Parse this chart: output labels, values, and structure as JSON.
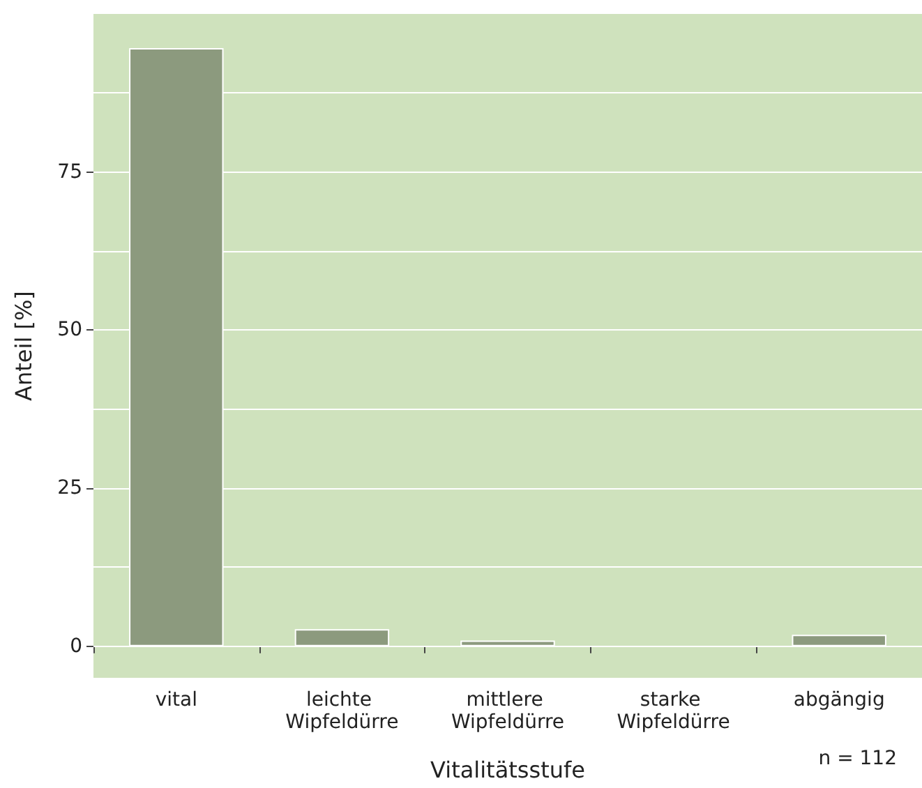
{
  "chart_data": {
    "type": "bar",
    "xlabel": "Vitalitätsstufe",
    "ylabel": "Anteil [%]",
    "categories": [
      "vital",
      "leichte Wipfeldürre",
      "mittlere Wipfeldürre",
      "starke Wipfeldürre",
      "abgängig"
    ],
    "values": [
      94.6,
      2.7,
      0.9,
      0,
      1.8
    ],
    "color": "#8c9a7e",
    "ylim": [
      -5,
      100
    ],
    "yticks": [
      0,
      {
        "value": 12.5,
        "label": null
      },
      25,
      {
        "value": 37.5,
        "label": null
      },
      50,
      {
        "value": 62.5,
        "label": null
      },
      75,
      {
        "value": 87.5,
        "label": null
      }
    ],
    "grid": "y",
    "annotations": [
      "n = 112"
    ]
  }
}
